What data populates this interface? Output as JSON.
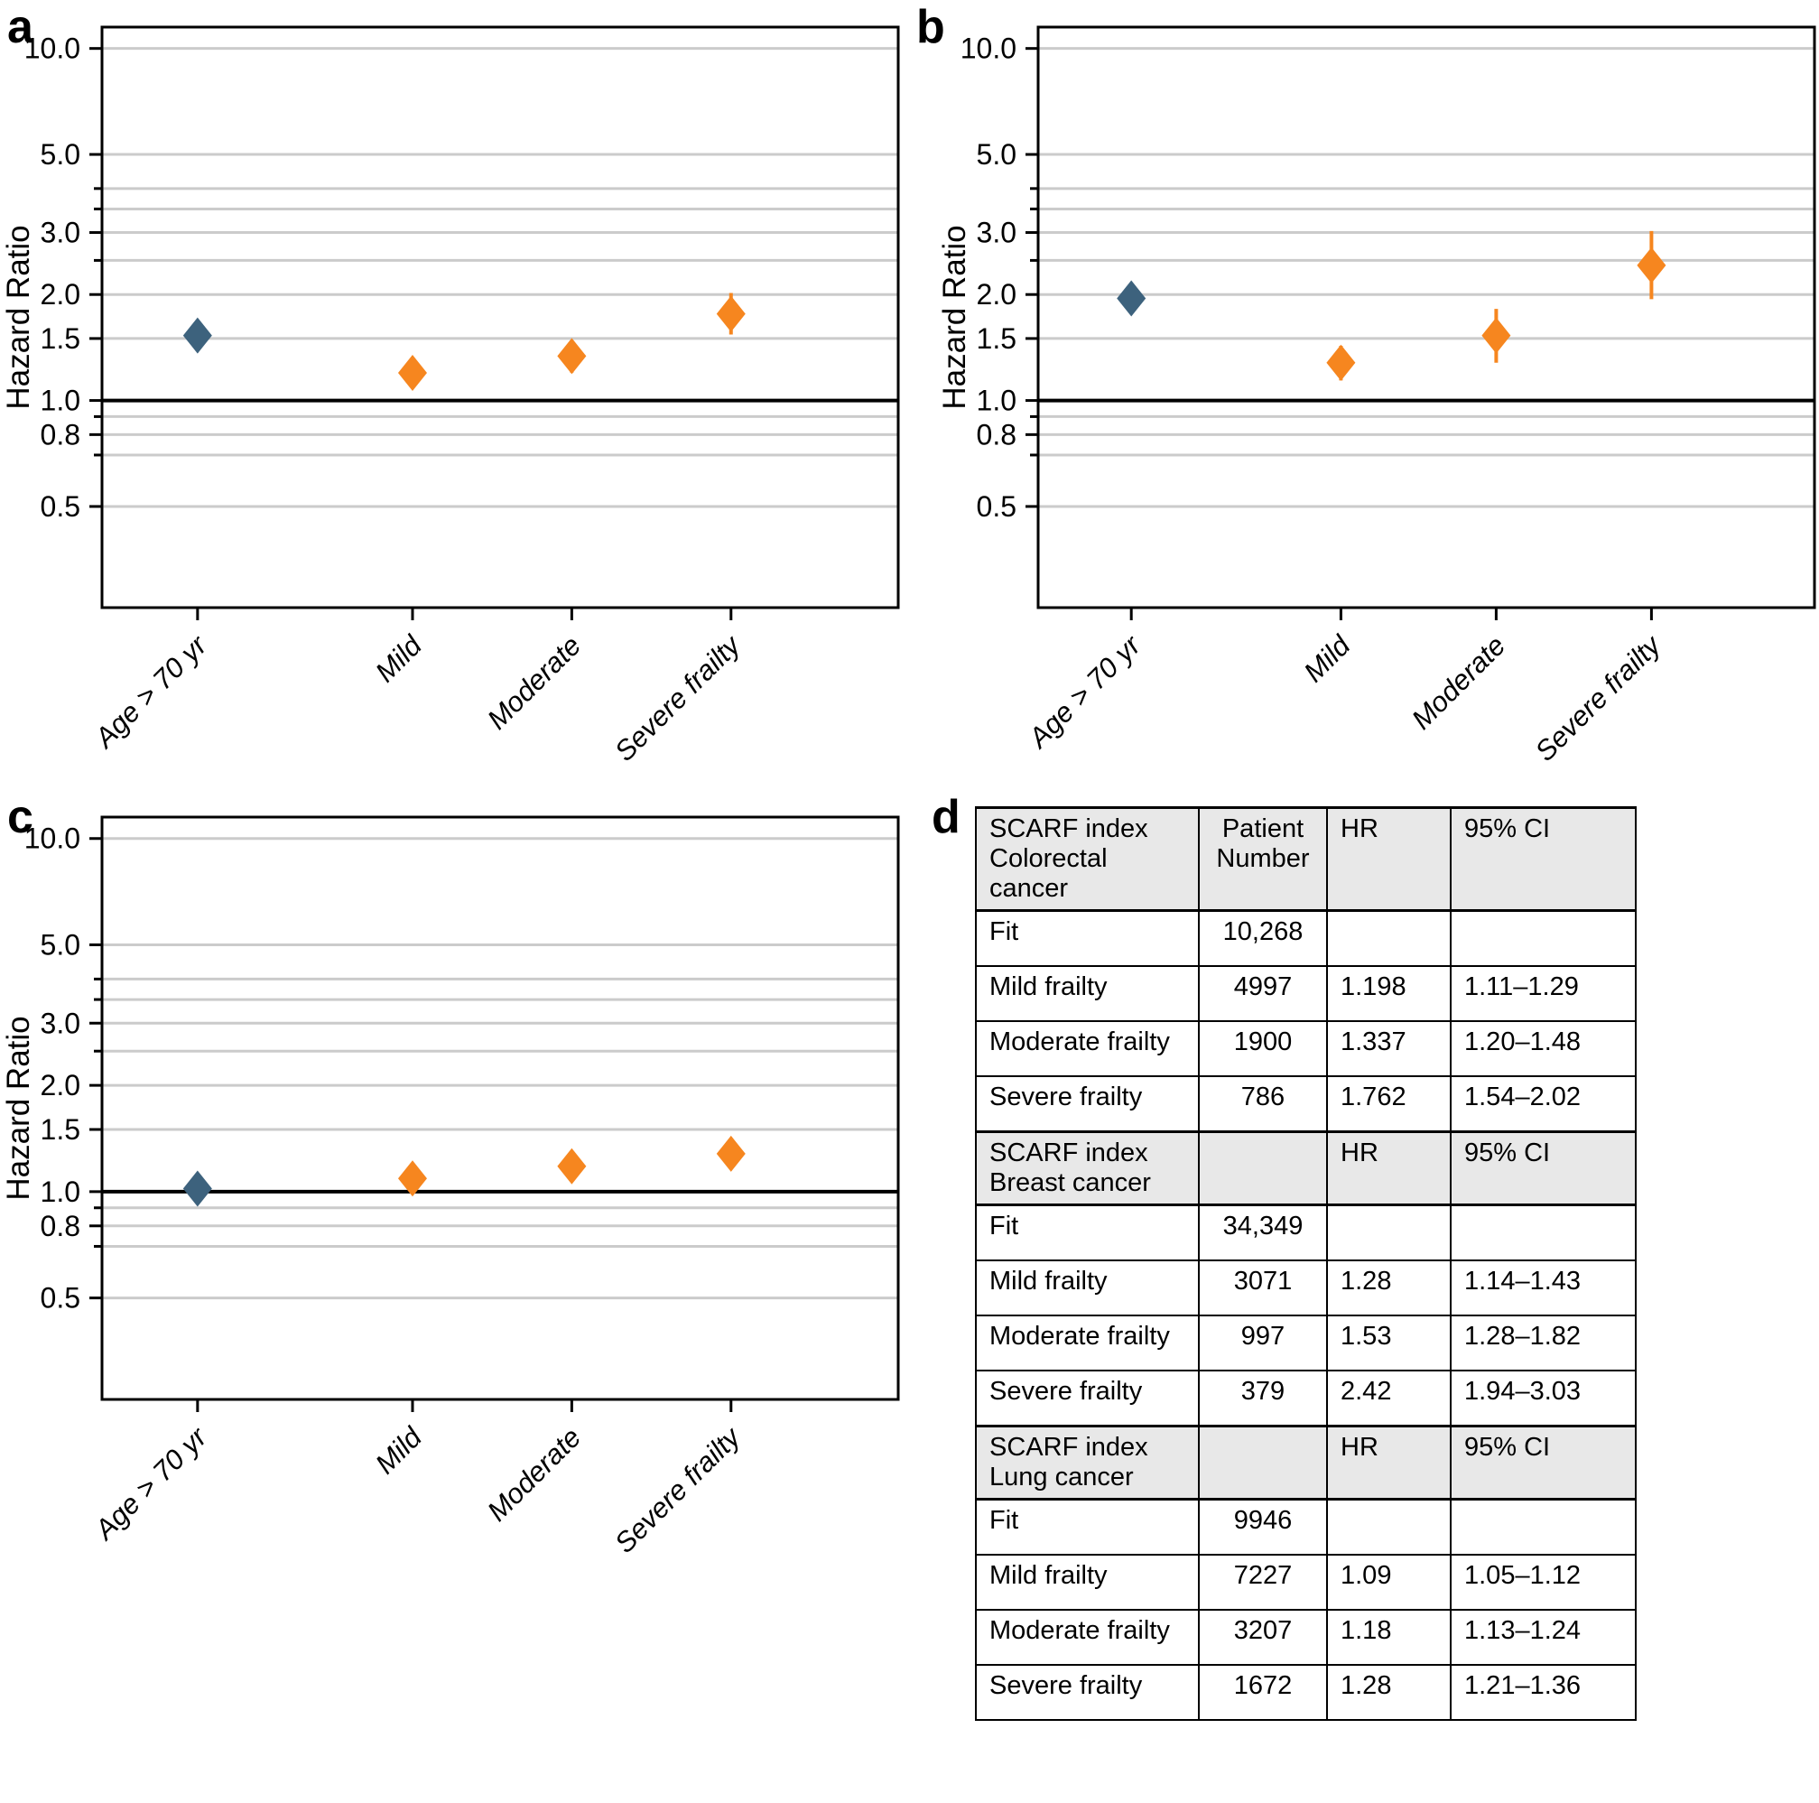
{
  "colors": {
    "age_marker": "#3D627D",
    "frailty_marker": "#F6861F",
    "gridline": "#CBCBCB",
    "reference_line": "#000000",
    "axis": "#000000",
    "table_header_bg": "#E8E8E8",
    "text": "#000000"
  },
  "chart_data": [
    {
      "panel_label": "a",
      "type": "scatter",
      "marker": "diamond",
      "ylabel": "Hazard Ratio",
      "yscale": "log",
      "ylim": [
        0.258,
        11.5
      ],
      "reference_line": 1.0,
      "ytick_values": [
        10,
        5,
        3,
        2,
        1.5,
        1,
        0.8,
        0.5
      ],
      "ytick_labels": [
        "10.0",
        "5.0",
        "3.0",
        "2.0",
        "1.5",
        "1.0",
        "0.8",
        "0.5"
      ],
      "minor_gridlines": [
        4,
        3.5,
        2.5,
        0.9,
        0.7
      ],
      "grid": true,
      "categories": [
        "Age > 70 yr",
        "Mild",
        "Moderate",
        "Severe frailty"
      ],
      "points": [
        {
          "category": "Age > 70 yr",
          "hr": 1.53,
          "ci_low": 1.45,
          "ci_high": 1.62,
          "series": "age"
        },
        {
          "category": "Mild",
          "hr": 1.198,
          "ci_low": 1.11,
          "ci_high": 1.29,
          "series": "frailty"
        },
        {
          "category": "Moderate",
          "hr": 1.337,
          "ci_low": 1.2,
          "ci_high": 1.48,
          "series": "frailty"
        },
        {
          "category": "Severe frailty",
          "hr": 1.762,
          "ci_low": 1.54,
          "ci_high": 2.02,
          "series": "frailty"
        }
      ]
    },
    {
      "panel_label": "b",
      "type": "scatter",
      "marker": "diamond",
      "ylabel": "Hazard Ratio",
      "yscale": "log",
      "ylim": [
        0.258,
        11.5
      ],
      "reference_line": 1.0,
      "ytick_values": [
        10,
        5,
        3,
        2,
        1.5,
        1,
        0.8,
        0.5
      ],
      "ytick_labels": [
        "10.0",
        "5.0",
        "3.0",
        "2.0",
        "1.5",
        "1.0",
        "0.8",
        "0.5"
      ],
      "minor_gridlines": [
        4,
        3.5,
        2.5,
        0.9,
        0.7
      ],
      "grid": true,
      "categories": [
        "Age > 70 yr",
        "Mild",
        "Moderate",
        "Severe frailty"
      ],
      "points": [
        {
          "category": "Age > 70 yr",
          "hr": 1.95,
          "ci_low": 1.82,
          "ci_high": 2.1,
          "series": "age"
        },
        {
          "category": "Mild",
          "hr": 1.28,
          "ci_low": 1.14,
          "ci_high": 1.43,
          "series": "frailty"
        },
        {
          "category": "Moderate",
          "hr": 1.53,
          "ci_low": 1.28,
          "ci_high": 1.82,
          "series": "frailty"
        },
        {
          "category": "Severe frailty",
          "hr": 2.42,
          "ci_low": 1.94,
          "ci_high": 3.03,
          "series": "frailty"
        }
      ]
    },
    {
      "panel_label": "c",
      "type": "scatter",
      "marker": "diamond",
      "ylabel": "Hazard Ratio",
      "yscale": "log",
      "ylim": [
        0.258,
        11.5
      ],
      "reference_line": 1.0,
      "ytick_values": [
        10,
        5,
        3,
        2,
        1.5,
        1,
        0.8,
        0.5
      ],
      "ytick_labels": [
        "10.0",
        "5.0",
        "3.0",
        "2.0",
        "1.5",
        "1.0",
        "0.8",
        "0.5"
      ],
      "minor_gridlines": [
        4,
        3.5,
        2.5,
        0.9,
        0.7
      ],
      "grid": true,
      "categories": [
        "Age > 70 yr",
        "Mild",
        "Moderate",
        "Severe frailty"
      ],
      "points": [
        {
          "category": "Age > 70 yr",
          "hr": 1.02,
          "ci_low": 0.98,
          "ci_high": 1.06,
          "series": "age"
        },
        {
          "category": "Mild",
          "hr": 1.09,
          "ci_low": 1.05,
          "ci_high": 1.12,
          "series": "frailty"
        },
        {
          "category": "Moderate",
          "hr": 1.18,
          "ci_low": 1.13,
          "ci_high": 1.24,
          "series": "frailty"
        },
        {
          "category": "Severe frailty",
          "hr": 1.28,
          "ci_low": 1.21,
          "ci_high": 1.36,
          "series": "frailty"
        }
      ]
    },
    {
      "panel_label": "d",
      "type": "table",
      "sections": [
        {
          "header": [
            "SCARF index Colorectal cancer",
            "Patient Number",
            "HR",
            "95% CI"
          ],
          "rows": [
            [
              "Fit",
              "10,268",
              "",
              ""
            ],
            [
              "Mild frailty",
              "4997",
              "1.198",
              "1.11–1.29"
            ],
            [
              "Moderate frailty",
              "1900",
              "1.337",
              "1.20–1.48"
            ],
            [
              "Severe frailty",
              "786",
              "1.762",
              "1.54–2.02"
            ]
          ]
        },
        {
          "header": [
            "SCARF index Breast cancer",
            "",
            "HR",
            "95% CI"
          ],
          "rows": [
            [
              "Fit",
              "34,349",
              "",
              ""
            ],
            [
              "Mild frailty",
              "3071",
              "1.28",
              "1.14–1.43"
            ],
            [
              "Moderate frailty",
              "997",
              "1.53",
              "1.28–1.82"
            ],
            [
              "Severe frailty",
              "379",
              "2.42",
              "1.94–3.03"
            ]
          ]
        },
        {
          "header": [
            "SCARF index Lung cancer",
            "",
            "HR",
            "95% CI"
          ],
          "rows": [
            [
              "Fit",
              "9946",
              "",
              ""
            ],
            [
              "Mild frailty",
              "7227",
              "1.09",
              "1.05–1.12"
            ],
            [
              "Moderate frailty",
              "3207",
              "1.18",
              "1.13–1.24"
            ],
            [
              "Severe frailty",
              "1672",
              "1.28",
              "1.21–1.36"
            ]
          ]
        }
      ]
    }
  ]
}
